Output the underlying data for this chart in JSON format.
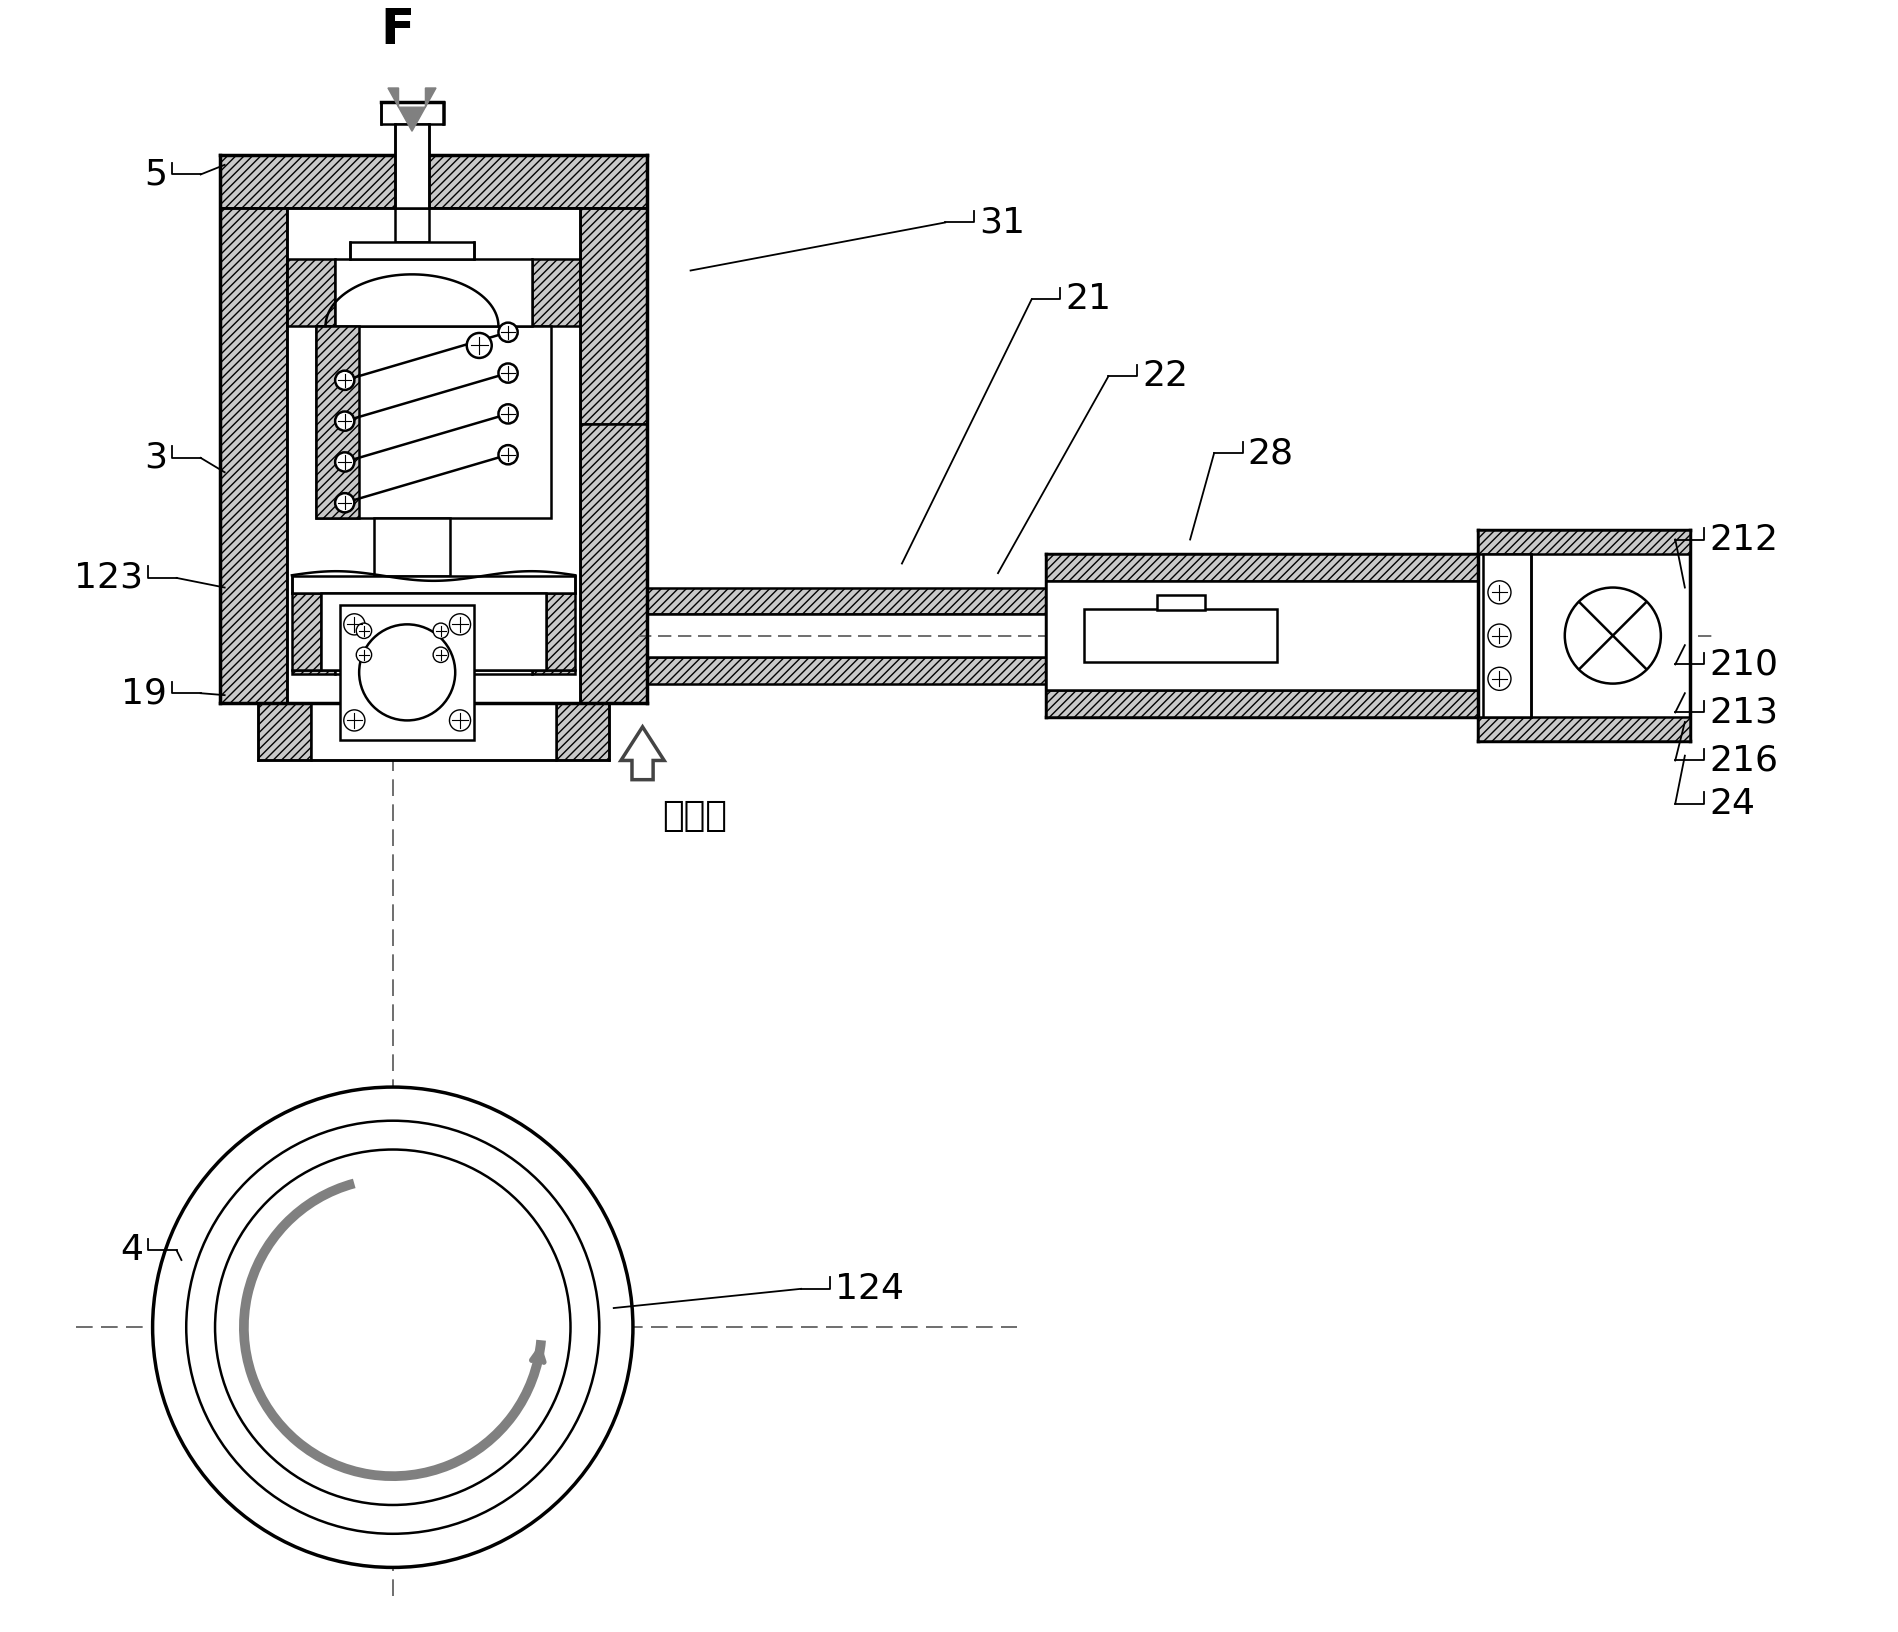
{
  "bg_color": "#ffffff",
  "lc": "#000000",
  "gray": "#808080",
  "dark_gray": "#555555",
  "hatch_fc": "#c8c8c8",
  "lw_main": 1.8,
  "lw_thick": 2.5,
  "lw_thin": 1.0,
  "figsize": [
    18.98,
    16.32
  ],
  "dpi": 100
}
